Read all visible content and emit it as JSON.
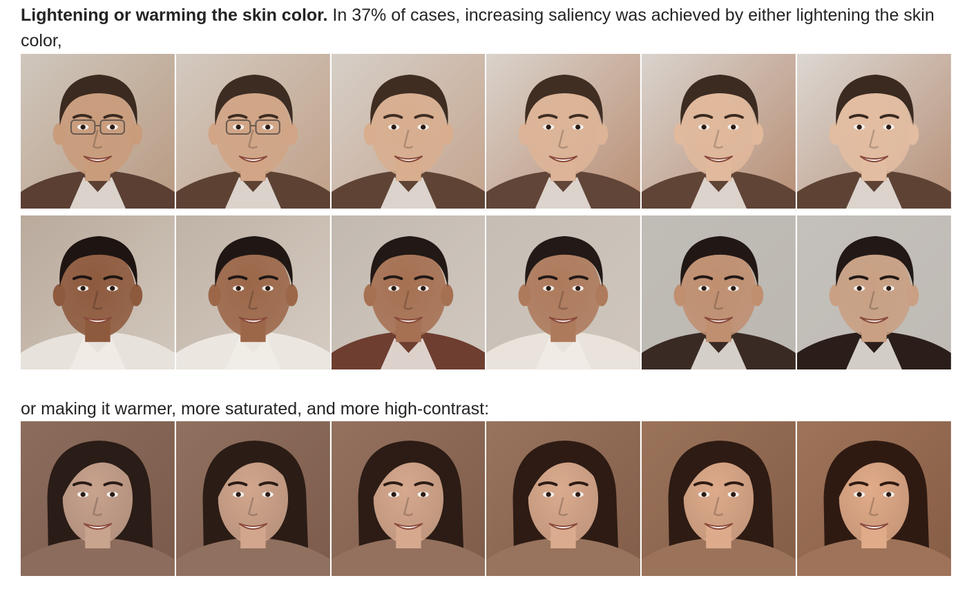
{
  "intro": {
    "bold_lead": "Lightening or warming the skin color.",
    "text": " In 37% of cases, increasing saliency was achieved by either lightening the skin color,"
  },
  "transition": {
    "text": "or making it warmer, more saturated, and more high-contrast:"
  },
  "strips": [
    {
      "name": "man-with-glasses-lightening",
      "frames": [
        {
          "bg": "#cfc7bd",
          "bg2": "#b89a82",
          "skin": "#c99c7c",
          "hair": "#3b2a20",
          "shirt": "#5a3f32",
          "glasses": true
        },
        {
          "bg": "#d3cac0",
          "bg2": "#c0a088",
          "skin": "#d1a586",
          "hair": "#3d2c22",
          "shirt": "#5d4234",
          "glasses": true
        },
        {
          "bg": "#d6cfc8",
          "bg2": "#c4a48d",
          "skin": "#d8ae8f",
          "hair": "#3f2d22",
          "shirt": "#5f4436",
          "glasses": false
        },
        {
          "bg": "#dad3cc",
          "bg2": "#b98e74",
          "skin": "#ddb497",
          "hair": "#402e23",
          "shirt": "#614538",
          "glasses": false
        },
        {
          "bg": "#d9d3cd",
          "bg2": "#b78d74",
          "skin": "#e1b99c",
          "hair": "#3c2b21",
          "shirt": "#604436",
          "glasses": false
        },
        {
          "bg": "#dcd7d2",
          "bg2": "#b69078",
          "skin": "#e3bda1",
          "hair": "#3a2a20",
          "shirt": "#5e4335",
          "glasses": false
        }
      ]
    },
    {
      "name": "young-man-lightening",
      "frames": [
        {
          "bg": "#b9aa9c",
          "bg2": "#d2c8bd",
          "skin": "#8e5a3e",
          "hair": "#1e1512",
          "shirt": "#e7e2dc",
          "glasses": false
        },
        {
          "bg": "#bfb2a6",
          "bg2": "#d6ccc2",
          "skin": "#9c6749",
          "hair": "#201714",
          "shirt": "#ebe6e0",
          "glasses": false
        },
        {
          "bg": "#c2b9b0",
          "bg2": "#d1c8bf",
          "skin": "#a67052",
          "hair": "#221815",
          "shirt": "#6e3e30",
          "glasses": false
        },
        {
          "bg": "#c6beb5",
          "bg2": "#cfc6bd",
          "skin": "#ae7a5c",
          "hair": "#231916",
          "shirt": "#e9e3dc",
          "glasses": false
        },
        {
          "bg": "#c0bcb6",
          "bg2": "#bcb7b1",
          "skin": "#c08f70",
          "hair": "#211815",
          "shirt": "#3a2a24",
          "glasses": false
        },
        {
          "bg": "#c4c0bb",
          "bg2": "#bfbab4",
          "skin": "#c9a083",
          "hair": "#221916",
          "shirt": "#2b1e1a",
          "glasses": false
        }
      ]
    },
    {
      "name": "woman-warming",
      "frames": [
        {
          "bg": "#8c6c5c",
          "bg2": "#7a5a4a",
          "skin": "#c8a38e",
          "hair": "#2a1c17",
          "shirt": "#8c6c5c",
          "glasses": false
        },
        {
          "bg": "#90705f",
          "bg2": "#7c5b4b",
          "skin": "#d1a68d",
          "hair": "#2b1c16",
          "shirt": "#90705f",
          "glasses": false
        },
        {
          "bg": "#94715e",
          "bg2": "#7f5c4a",
          "skin": "#d6a98e",
          "hair": "#2c1c15",
          "shirt": "#94715e",
          "glasses": false
        },
        {
          "bg": "#98735d",
          "bg2": "#825d49",
          "skin": "#daab8e",
          "hair": "#2d1b14",
          "shirt": "#98735d",
          "glasses": false
        },
        {
          "bg": "#9b735b",
          "bg2": "#845d47",
          "skin": "#ddab8b",
          "hair": "#2e1b13",
          "shirt": "#9b735b",
          "glasses": false
        },
        {
          "bg": "#9e7359",
          "bg2": "#865d45",
          "skin": "#e0ab89",
          "hair": "#2f1a12",
          "shirt": "#9e7359",
          "glasses": false
        }
      ]
    }
  ]
}
